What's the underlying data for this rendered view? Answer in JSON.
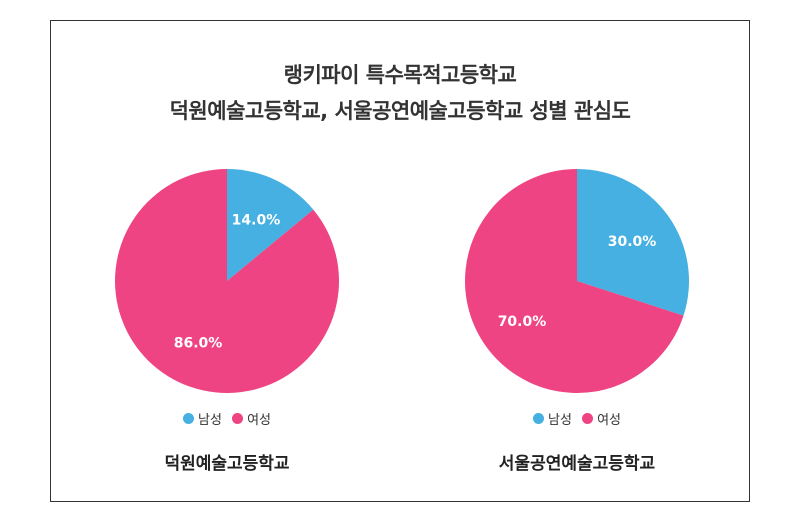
{
  "title_line1": "랭키파이 특수목적고등학교",
  "title_line2": "덕원예술고등학교, 서울공연예술고등학교 성별 관심도",
  "chart_data": [
    {
      "type": "pie",
      "title": "덕원예술고등학교",
      "labels": [
        "남성",
        "여성"
      ],
      "values": [
        14.0,
        86.0
      ],
      "value_labels": [
        "14.0%",
        "86.0%"
      ],
      "colors": [
        "#45b0e1",
        "#ef4483"
      ],
      "legend": "bottom"
    },
    {
      "type": "pie",
      "title": "서울공연예술고등학교",
      "labels": [
        "남성",
        "여성"
      ],
      "values": [
        30.0,
        70.0
      ],
      "value_labels": [
        "30.0%",
        "70.0%"
      ],
      "colors": [
        "#45b0e1",
        "#ef4483"
      ],
      "legend": "bottom"
    }
  ]
}
